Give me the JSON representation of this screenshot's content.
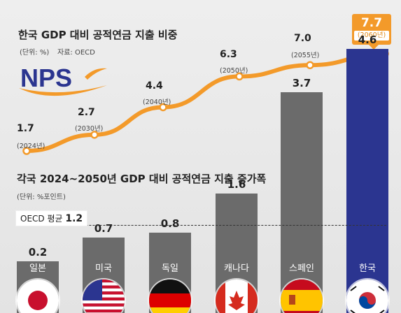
{
  "top_chart": {
    "title": "한국 GDP 대비 공적연금 지출 비중",
    "unit": "(단위: %)",
    "source": "자료: OECD",
    "logo_text": "NPS",
    "line_color": "#f39a2a",
    "points": [
      {
        "value": "1.7",
        "year": "(2024년)"
      },
      {
        "value": "2.7",
        "year": "(2030년)"
      },
      {
        "value": "4.4",
        "year": "(2040년)"
      },
      {
        "value": "6.3",
        "year": "(2050년)"
      },
      {
        "value": "7.0",
        "year": "(2055년)"
      },
      {
        "value": "7.7",
        "year": "(2060년)"
      }
    ]
  },
  "bottom_chart": {
    "title": "각국 2024~2050년 GDP 대비 공적연금 지출 증가폭",
    "unit": "(단위: %포인트)",
    "oecd_label": "OECD 평균",
    "oecd_value": "1.2",
    "bar_color": "#6b6b6b",
    "highlight_color": "#2b3590",
    "bars": [
      {
        "label": "일본",
        "value": "0.2",
        "flag": "japan-flag-icon"
      },
      {
        "label": "미국",
        "value": "0.7",
        "flag": "usa-flag-icon"
      },
      {
        "label": "독일",
        "value": "0.8",
        "flag": "germany-flag-icon"
      },
      {
        "label": "캐나다",
        "value": "1.6",
        "flag": "canada-flag-icon"
      },
      {
        "label": "스페인",
        "value": "3.7",
        "flag": "spain-flag-icon"
      },
      {
        "label": "한국",
        "value": "4.6",
        "flag": "korea-flag-icon"
      }
    ]
  },
  "chart_data": [
    {
      "type": "line",
      "title": "한국 GDP 대비 공적연금 지출 비중",
      "x": [
        2024,
        2030,
        2040,
        2050,
        2055,
        2060
      ],
      "series": [
        {
          "values": [
            1.7,
            2.7,
            4.4,
            6.3,
            7.0,
            7.7
          ]
        }
      ],
      "ylabel": "%",
      "grid": false
    },
    {
      "type": "bar",
      "title": "각국 2024~2050년 GDP 대비 공적연금 지출 증가폭",
      "categories": [
        "일본",
        "미국",
        "독일",
        "캐나다",
        "스페인",
        "한국"
      ],
      "values": [
        0.2,
        0.7,
        0.8,
        1.6,
        3.7,
        4.6
      ],
      "reference_line": {
        "label": "OECD 평균",
        "value": 1.2
      },
      "ylabel": "%포인트",
      "grid": false
    }
  ]
}
